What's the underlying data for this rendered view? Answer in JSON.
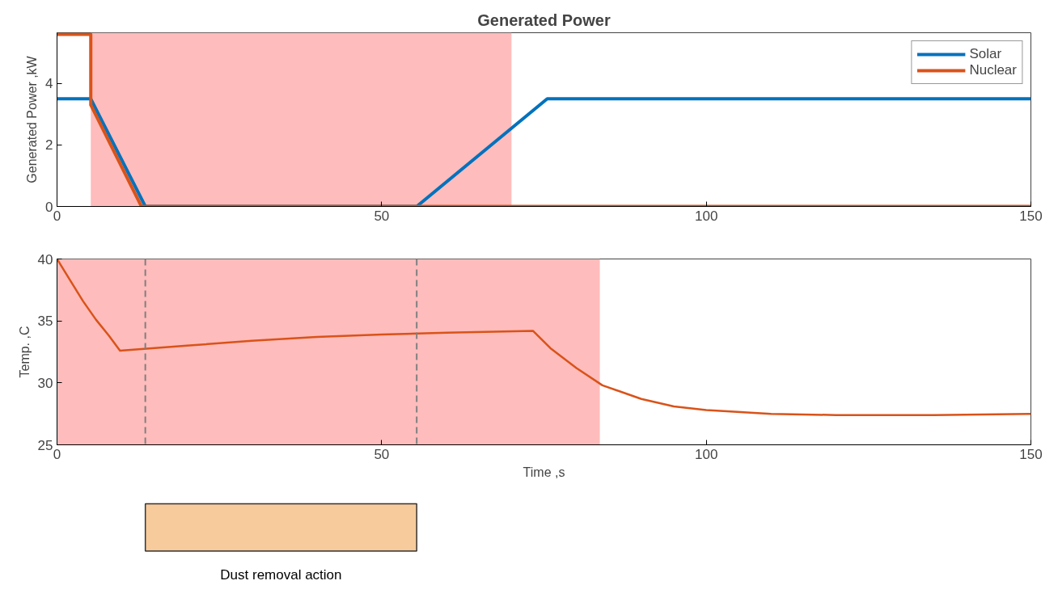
{
  "chart_data": [
    {
      "type": "line",
      "title": "Generated Power",
      "ylabel": "Generated Power ,kW",
      "xlim": [
        0,
        150
      ],
      "xticks": [
        0,
        50,
        100,
        150
      ],
      "ylim": [
        0,
        5.65
      ],
      "yticks": [
        0,
        2,
        4
      ],
      "grid": false,
      "legend": "top right",
      "line_style": "solid",
      "marker": "none",
      "series": [
        {
          "name": "Solar",
          "color": "#0072bd",
          "x": [
            0,
            5.2,
            13.6,
            55.4,
            75.5,
            150
          ],
          "values": [
            3.5,
            3.5,
            0,
            0,
            3.5,
            3.5
          ]
        },
        {
          "name": "Nuclear",
          "color": "#d95319",
          "x": [
            0,
            5.2,
            5.2,
            13,
            150
          ],
          "values": [
            5.6,
            5.6,
            3.3,
            0,
            0
          ]
        }
      ],
      "bands": [
        {
          "axis": "x",
          "from": 5.2,
          "to": 70,
          "color": "#ffbcbc"
        }
      ]
    },
    {
      "type": "line",
      "xlabel": "Time ,s",
      "ylabel": "Temp. ,C",
      "xlim": [
        0,
        150
      ],
      "xticks": [
        0,
        50,
        100,
        150
      ],
      "ylim": [
        25,
        40
      ],
      "yticks": [
        25,
        30,
        35,
        40
      ],
      "grid": false,
      "line_style": "solid",
      "marker": "none",
      "series": [
        {
          "color": "#d95319",
          "x": [
            0,
            2,
            4,
            6,
            8,
            9.7,
            20,
            30,
            40,
            50,
            60,
            73.3,
            76,
            80,
            84,
            90,
            95,
            100,
            110,
            120,
            135,
            150
          ],
          "values": [
            40,
            38.3,
            36.6,
            35.1,
            33.8,
            32.6,
            33.0,
            33.4,
            33.7,
            33.9,
            34.05,
            34.2,
            32.8,
            31.2,
            29.8,
            28.7,
            28.1,
            27.8,
            27.5,
            27.4,
            27.4,
            27.5
          ]
        }
      ],
      "bands": [
        {
          "axis": "x",
          "from": 0,
          "to": 83.6,
          "color": "#ffbcbc"
        }
      ],
      "ref_lines": [
        {
          "axis": "x",
          "value": 13.6,
          "color": "#808080",
          "line_style": "dashed"
        },
        {
          "axis": "x",
          "value": 55.4,
          "color": "#808080",
          "line_style": "dashed"
        }
      ]
    },
    {
      "type": "bar",
      "orientation": "horizontal",
      "categories": [
        null
      ],
      "base": [
        13.6
      ],
      "values": [
        41.8
      ],
      "colors": [
        "#f8cb9c"
      ],
      "xlim": [
        0,
        150
      ],
      "tick_labels": false,
      "annotations": [
        "Dust removal action"
      ]
    }
  ]
}
